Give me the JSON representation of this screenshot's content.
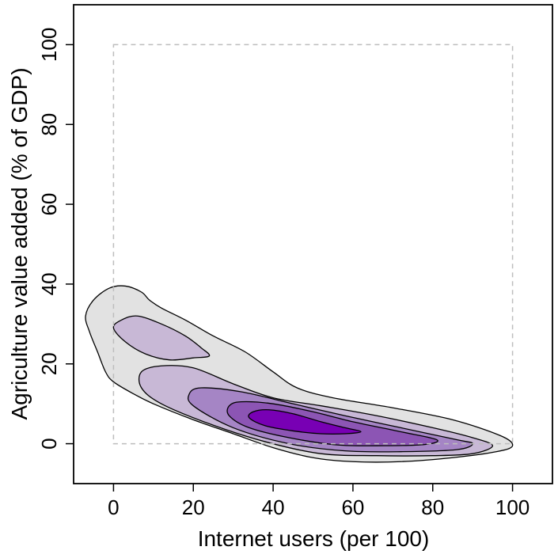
{
  "chart_data": {
    "type": "contour",
    "title": "",
    "xlabel": "Internet users (per 100)",
    "ylabel": "Agriculture value added (% of GDP)",
    "xlim": [
      -10,
      110
    ],
    "ylim": [
      -10,
      110
    ],
    "x_ticks": [
      0,
      20,
      40,
      60,
      80,
      100
    ],
    "y_ticks": [
      0,
      20,
      40,
      60,
      80,
      100
    ],
    "reference_box": {
      "x": [
        0,
        100
      ],
      "y": [
        0,
        100
      ],
      "style": "dashed"
    },
    "grid": false,
    "legend": "none",
    "levels": [
      {
        "level": 1,
        "fill": "#e2e2e2",
        "regions": [
          [
            [
              -2,
              18
            ],
            [
              -4,
              23
            ],
            [
              -6,
              28
            ],
            [
              -7,
              32
            ],
            [
              -5,
              36
            ],
            [
              -1,
              39
            ],
            [
              3,
              39.5
            ],
            [
              7,
              38
            ],
            [
              9,
              36
            ],
            [
              12,
              34
            ],
            [
              18,
              31
            ],
            [
              25,
              27
            ],
            [
              33,
              23
            ],
            [
              40,
              18
            ],
            [
              46,
              14
            ],
            [
              55,
              11.5
            ],
            [
              70,
              9
            ],
            [
              85,
              6
            ],
            [
              97,
              2
            ],
            [
              100,
              -0.5
            ],
            [
              96,
              -2
            ],
            [
              85,
              -3.5
            ],
            [
              72,
              -4.5
            ],
            [
              60,
              -4.5
            ],
            [
              50,
              -3.5
            ],
            [
              40,
              -1
            ],
            [
              30,
              2.5
            ],
            [
              20,
              6
            ],
            [
              10,
              10
            ],
            [
              5,
              12.5
            ],
            [
              0,
              15.5
            ]
          ]
        ]
      },
      {
        "level": 2,
        "fill": "#c8b8d6",
        "regions": [
          [
            [
              0,
              29
            ],
            [
              2,
              31
            ],
            [
              6,
              32
            ],
            [
              12,
              30
            ],
            [
              18,
              27
            ],
            [
              22,
              24
            ],
            [
              24,
              22
            ],
            [
              20,
              21.5
            ],
            [
              14,
              21
            ],
            [
              8,
              22.5
            ],
            [
              3,
              25.5
            ]
          ],
          [
            [
              7,
              18
            ],
            [
              12,
              19.5
            ],
            [
              20,
              19
            ],
            [
              30,
              15
            ],
            [
              40,
              11.5
            ],
            [
              52,
              9.5
            ],
            [
              66,
              7
            ],
            [
              80,
              4
            ],
            [
              90,
              1.5
            ],
            [
              95,
              -0.5
            ],
            [
              90,
              -2.5
            ],
            [
              80,
              -3
            ],
            [
              66,
              -3
            ],
            [
              52,
              -2.5
            ],
            [
              38,
              0.5
            ],
            [
              24,
              5
            ],
            [
              12,
              10
            ],
            [
              7,
              14
            ]
          ]
        ]
      },
      {
        "level": 3,
        "fill": "#a585c5",
        "regions": [
          [
            [
              19,
              12.5
            ],
            [
              22,
              14
            ],
            [
              32,
              13
            ],
            [
              45,
              10
            ],
            [
              58,
              7
            ],
            [
              72,
              4
            ],
            [
              86,
              1
            ],
            [
              90,
              0
            ],
            [
              86,
              -1.5
            ],
            [
              72,
              -2
            ],
            [
              58,
              -1.8
            ],
            [
              44,
              0
            ],
            [
              30,
              4
            ],
            [
              20,
              9.5
            ]
          ]
        ]
      },
      {
        "level": 4,
        "fill": "#8c55b4",
        "regions": [
          [
            [
              29,
              9.5
            ],
            [
              32,
              10.5
            ],
            [
              40,
              10
            ],
            [
              50,
              8
            ],
            [
              60,
              5.5
            ],
            [
              72,
              3
            ],
            [
              81,
              1
            ],
            [
              78,
              -0.2
            ],
            [
              68,
              -0.5
            ],
            [
              56,
              -0.3
            ],
            [
              44,
              1.5
            ],
            [
              34,
              4
            ],
            [
              29,
              7
            ]
          ]
        ]
      },
      {
        "level": 5,
        "fill": "#7800b4",
        "regions": [
          [
            [
              34,
              6.5
            ],
            [
              35,
              8
            ],
            [
              39,
              8.5
            ],
            [
              45,
              7.5
            ],
            [
              52,
              5.5
            ],
            [
              58,
              4
            ],
            [
              62,
              3
            ],
            [
              58,
              2.5
            ],
            [
              52,
              2.5
            ],
            [
              45,
              3.2
            ],
            [
              38,
              4.5
            ]
          ]
        ]
      }
    ]
  }
}
